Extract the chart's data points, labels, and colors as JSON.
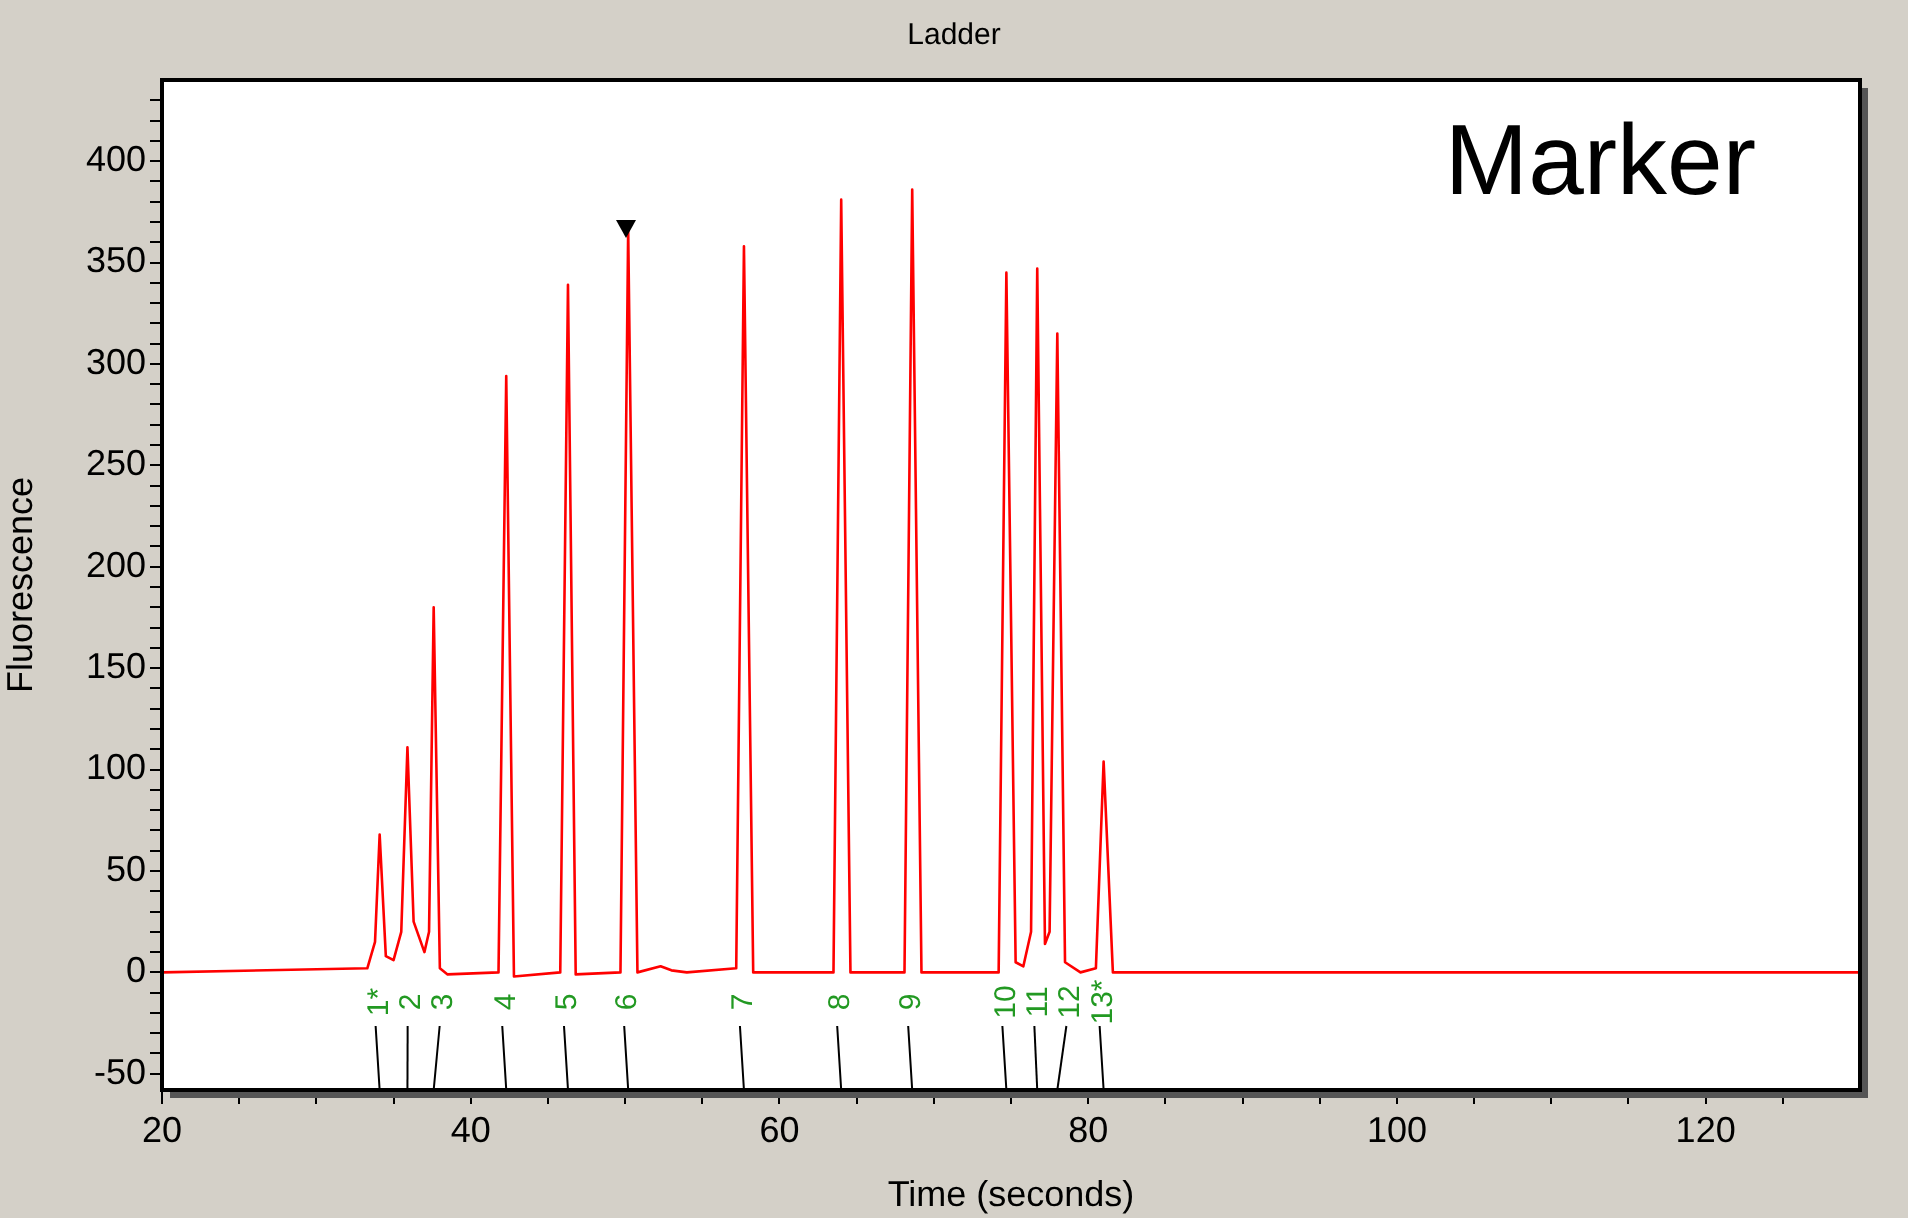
{
  "chart_data": {
    "type": "line",
    "title": "Ladder",
    "xlabel": "Time (seconds)",
    "ylabel": "Fluorescence",
    "xlim": [
      20,
      130
    ],
    "xticks": [
      20,
      {
        "value": 25,
        "label": null
      },
      {
        "value": 30,
        "label": null
      },
      {
        "value": 35,
        "label": null
      },
      40,
      {
        "value": 45,
        "label": null
      },
      {
        "value": 50,
        "label": null
      },
      {
        "value": 55,
        "label": null
      },
      60,
      {
        "value": 65,
        "label": null
      },
      {
        "value": 70,
        "label": null
      },
      {
        "value": 75,
        "label": null
      },
      80,
      {
        "value": 85,
        "label": null
      },
      {
        "value": 90,
        "label": null
      },
      {
        "value": 95,
        "label": null
      },
      100,
      {
        "value": 105,
        "label": null
      },
      {
        "value": 110,
        "label": null
      },
      {
        "value": 115,
        "label": null
      },
      120,
      {
        "value": 125,
        "label": null
      }
    ],
    "ylim": [
      -58,
      440
    ],
    "yticks": [
      -50,
      {
        "value": -40,
        "label": null
      },
      {
        "value": -30,
        "label": null
      },
      {
        "value": -20,
        "label": null
      },
      {
        "value": -10,
        "label": null
      },
      0,
      {
        "value": 10,
        "label": null
      },
      {
        "value": 20,
        "label": null
      },
      {
        "value": 30,
        "label": null
      },
      {
        "value": 40,
        "label": null
      },
      50,
      {
        "value": 60,
        "label": null
      },
      {
        "value": 70,
        "label": null
      },
      {
        "value": 80,
        "label": null
      },
      {
        "value": 90,
        "label": null
      },
      100,
      {
        "value": 110,
        "label": null
      },
      {
        "value": 120,
        "label": null
      },
      {
        "value": 130,
        "label": null
      },
      {
        "value": 140,
        "label": null
      },
      150,
      {
        "value": 160,
        "label": null
      },
      {
        "value": 170,
        "label": null
      },
      {
        "value": 180,
        "label": null
      },
      {
        "value": 190,
        "label": null
      },
      200,
      {
        "value": 210,
        "label": null
      },
      {
        "value": 220,
        "label": null
      },
      {
        "value": 230,
        "label": null
      },
      {
        "value": 240,
        "label": null
      },
      250,
      {
        "value": 260,
        "label": null
      },
      {
        "value": 270,
        "label": null
      },
      {
        "value": 280,
        "label": null
      },
      {
        "value": 290,
        "label": null
      },
      300,
      {
        "value": 310,
        "label": null
      },
      {
        "value": 320,
        "label": null
      },
      {
        "value": 330,
        "label": null
      },
      {
        "value": 340,
        "label": null
      },
      350,
      {
        "value": 360,
        "label": null
      },
      {
        "value": 370,
        "label": null
      },
      {
        "value": 380,
        "label": null
      },
      {
        "value": 390,
        "label": null
      },
      400,
      {
        "value": 410,
        "label": null
      },
      {
        "value": 420,
        "label": null
      },
      {
        "value": 430,
        "label": null
      }
    ],
    "marker": "none",
    "line_style": "solid",
    "series": [
      {
        "color": "#ff0000",
        "x": [
          20,
          33.3,
          33.8,
          34.1,
          34.5,
          35.0,
          35.5,
          35.9,
          36.3,
          37.0,
          37.3,
          37.6,
          38.0,
          38.5,
          41.8,
          42.3,
          42.8,
          45.8,
          46.3,
          46.8,
          49.7,
          50.2,
          50.8,
          52.3,
          53.0,
          54,
          57.2,
          57.7,
          58.3,
          63.5,
          64.0,
          64.6,
          68.1,
          68.6,
          69.2,
          74.2,
          74.7,
          75.3,
          75.8,
          76.3,
          76.7,
          77.2,
          77.5,
          78.0,
          78.5,
          79.5,
          80.5,
          81.0,
          81.6,
          82.5,
          130
        ],
        "values": [
          0,
          2,
          15,
          68,
          8,
          6,
          20,
          111,
          25,
          10,
          20,
          180,
          2,
          -1,
          0,
          294,
          -2,
          0,
          339,
          -1,
          0,
          366,
          0,
          3,
          1,
          0,
          2,
          358,
          0,
          0,
          381,
          0,
          0,
          386,
          0,
          0,
          345,
          5,
          3,
          20,
          347,
          14,
          20,
          315,
          5,
          0,
          2,
          104,
          0,
          0,
          0
        ]
      }
    ],
    "annotations": [
      "Marker",
      "1*",
      "2",
      "3",
      "4",
      "5",
      "6",
      "7",
      "8",
      "9",
      "10",
      "11",
      "12",
      "13*"
    ]
  }
}
